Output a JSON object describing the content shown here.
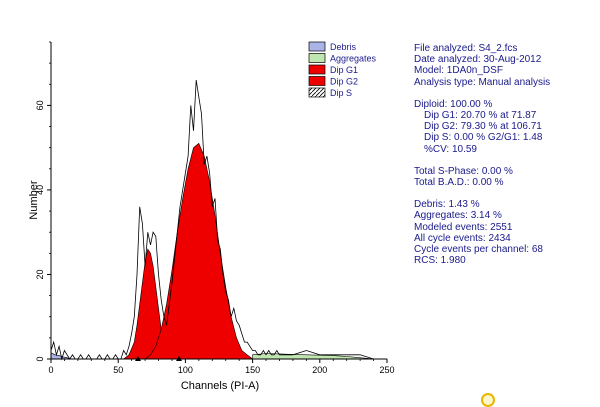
{
  "chart_data": {
    "type": "area",
    "xlabel": "Channels (PI-A)",
    "ylabel": "Number",
    "xlim": [
      0,
      250
    ],
    "ylim": [
      0,
      75
    ],
    "xticks": [
      0,
      50,
      100,
      150,
      200,
      250
    ],
    "yticks": [
      0,
      20,
      40,
      60
    ],
    "legend": {
      "position": "top-right",
      "entries": [
        {
          "name": "Debris",
          "color": "#aab4e8",
          "pattern": "solid"
        },
        {
          "name": "Aggregates",
          "color": "#bfe6b0",
          "pattern": "solid"
        },
        {
          "name": "Dip G1",
          "color": "#ee0000",
          "pattern": "solid"
        },
        {
          "name": "Dip G2",
          "color": "#ee0000",
          "pattern": "solid"
        },
        {
          "name": "Dip S",
          "color": "#ffffff",
          "pattern": "hatch"
        }
      ]
    },
    "series": [
      {
        "name": "Dip G1",
        "fill": "#ee0000",
        "x": [
          54,
          58,
          62,
          64,
          66,
          68,
          70,
          72,
          74,
          76,
          78,
          80,
          82,
          84,
          86,
          88,
          90
        ],
        "y": [
          0,
          1,
          4,
          8,
          13,
          18,
          23,
          26,
          25,
          22,
          17,
          12,
          7,
          4,
          2,
          1,
          0
        ]
      },
      {
        "name": "Dip G2",
        "fill": "#ee0000",
        "x": [
          70,
          74,
          78,
          82,
          86,
          90,
          94,
          98,
          102,
          106,
          110,
          114,
          118,
          122,
          126,
          130,
          134,
          138,
          142,
          146,
          150
        ],
        "y": [
          0,
          1,
          3,
          7,
          13,
          21,
          30,
          38,
          45,
          50,
          51,
          48,
          42,
          34,
          25,
          17,
          10,
          5,
          2,
          1,
          0
        ]
      },
      {
        "name": "Debris",
        "fill": "#aab4e8",
        "x": [
          0,
          3,
          6,
          9,
          12,
          15
        ],
        "y": [
          1.5,
          1,
          0.8,
          0.5,
          0.3,
          0
        ]
      },
      {
        "name": "Aggregates",
        "fill": "#bfe6b0",
        "x": [
          150,
          160,
          170,
          180,
          190,
          200,
          210,
          220,
          230,
          240
        ],
        "y": [
          1,
          1.3,
          1.2,
          1.1,
          1,
          0.9,
          0.8,
          0.6,
          0.3,
          0
        ]
      },
      {
        "name": "Histogram",
        "stroke": "#000000",
        "x": [
          0,
          2,
          4,
          6,
          8,
          10,
          12,
          14,
          16,
          18,
          20,
          22,
          24,
          26,
          28,
          30,
          32,
          34,
          36,
          38,
          40,
          42,
          44,
          46,
          48,
          50,
          52,
          54,
          56,
          58,
          60,
          62,
          64,
          66,
          68,
          70,
          72,
          74,
          76,
          78,
          80,
          82,
          84,
          86,
          88,
          90,
          92,
          94,
          96,
          98,
          100,
          102,
          104,
          106,
          108,
          110,
          112,
          114,
          116,
          118,
          120,
          122,
          124,
          126,
          128,
          130,
          132,
          134,
          136,
          138,
          140,
          142,
          144,
          146,
          148,
          150,
          152,
          154,
          156,
          158,
          160,
          162,
          164,
          166,
          168,
          170,
          180,
          190,
          200,
          210,
          220,
          230,
          240
        ],
        "y": [
          2,
          4,
          1,
          3,
          0,
          2,
          1,
          0,
          1,
          0,
          0,
          1,
          0,
          0,
          1,
          0,
          0,
          0,
          1,
          0,
          0,
          1,
          0,
          0,
          1,
          0,
          0,
          2,
          1,
          3,
          6,
          10,
          20,
          36,
          32,
          22,
          30,
          27,
          30,
          29,
          20,
          14,
          10,
          8,
          13,
          18,
          24,
          30,
          36,
          40,
          44,
          48,
          60,
          54,
          66,
          62,
          58,
          46,
          48,
          44,
          36,
          38,
          28,
          26,
          20,
          16,
          14,
          10,
          12,
          9,
          8,
          6,
          4,
          4,
          3,
          2,
          2,
          1,
          1,
          2,
          1,
          2,
          1,
          1,
          2,
          1,
          1,
          2,
          1,
          1,
          1,
          1,
          0
        ]
      }
    ]
  },
  "stats": {
    "file": "File analyzed: S4_2.fcs",
    "date": "Date analyzed: 30-Aug-2012",
    "model": "Model: 1DA0n_DSF",
    "analysis": "Analysis type: Manual analysis",
    "diploid": "Diploid: 100.00 %",
    "dip_g1": "Dip G1: 20.70 % at 71.87",
    "dip_g2": "Dip G2: 79.30 % at 106.71",
    "dip_s": "Dip S: 0.00 %   G2/G1: 1.48",
    "cv": "%CV: 10.59",
    "total_s": "Total S-Phase: 0.00 %",
    "total_bad": "Total B.A.D.: 0.00 %",
    "debris": "Debris: 1.43 %",
    "aggregates": "Aggregates: 3.14 %",
    "modeled": "Modeled events: 2551",
    "all_cycle": "All cycle events: 2434",
    "cycle_per_channel": "Cycle events per channel: 68",
    "rcs": "RCS: 1.980"
  }
}
